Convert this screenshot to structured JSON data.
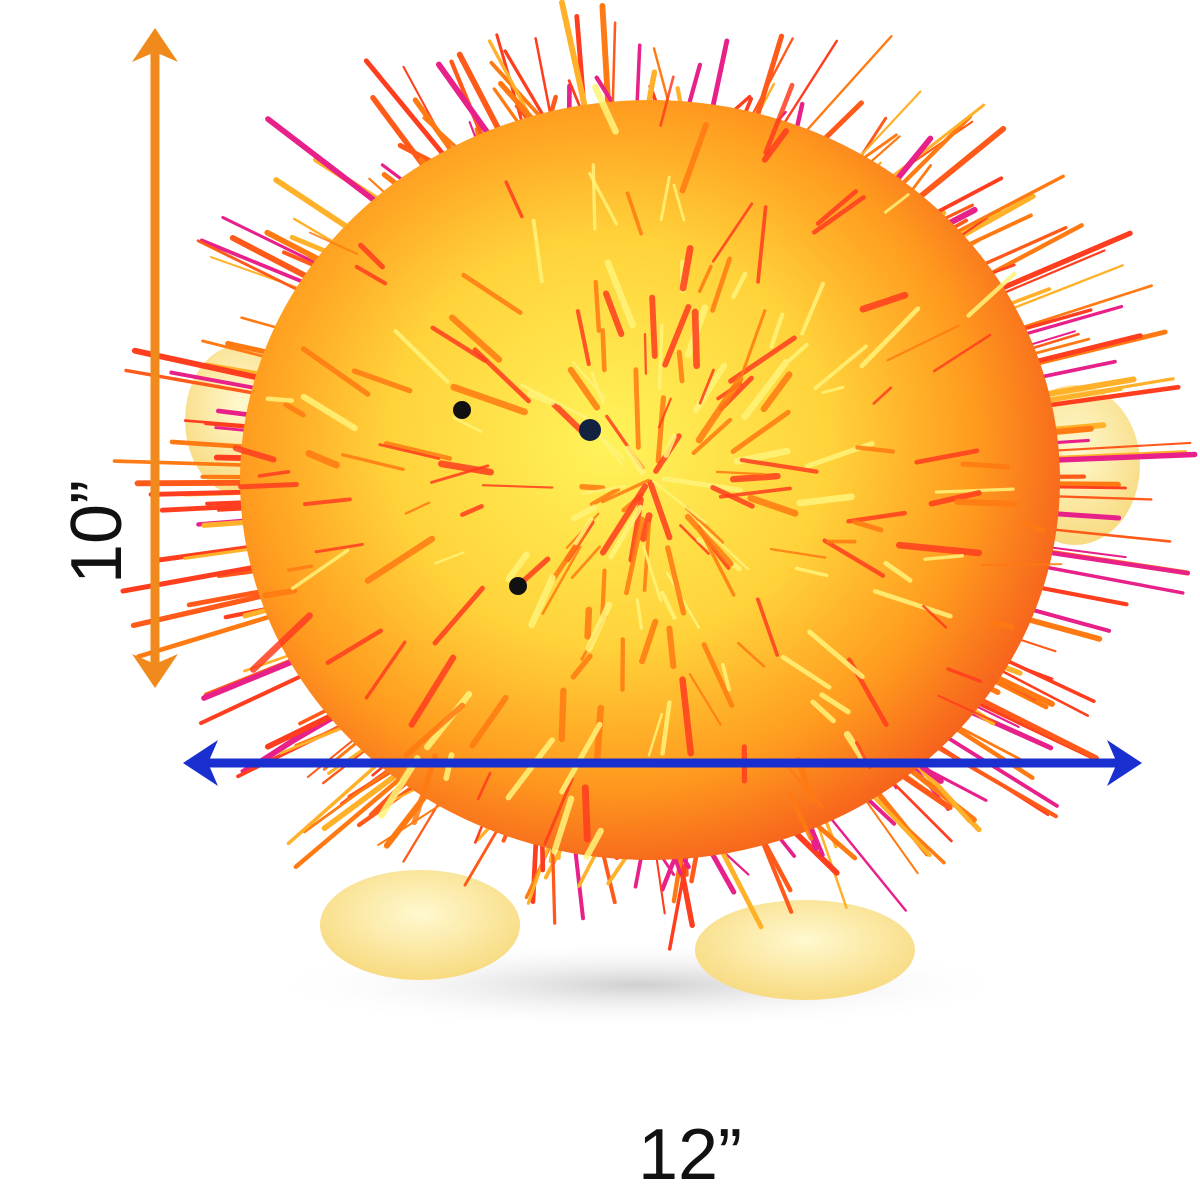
{
  "dimensions": {
    "height": "10”",
    "width": "12”"
  }
}
